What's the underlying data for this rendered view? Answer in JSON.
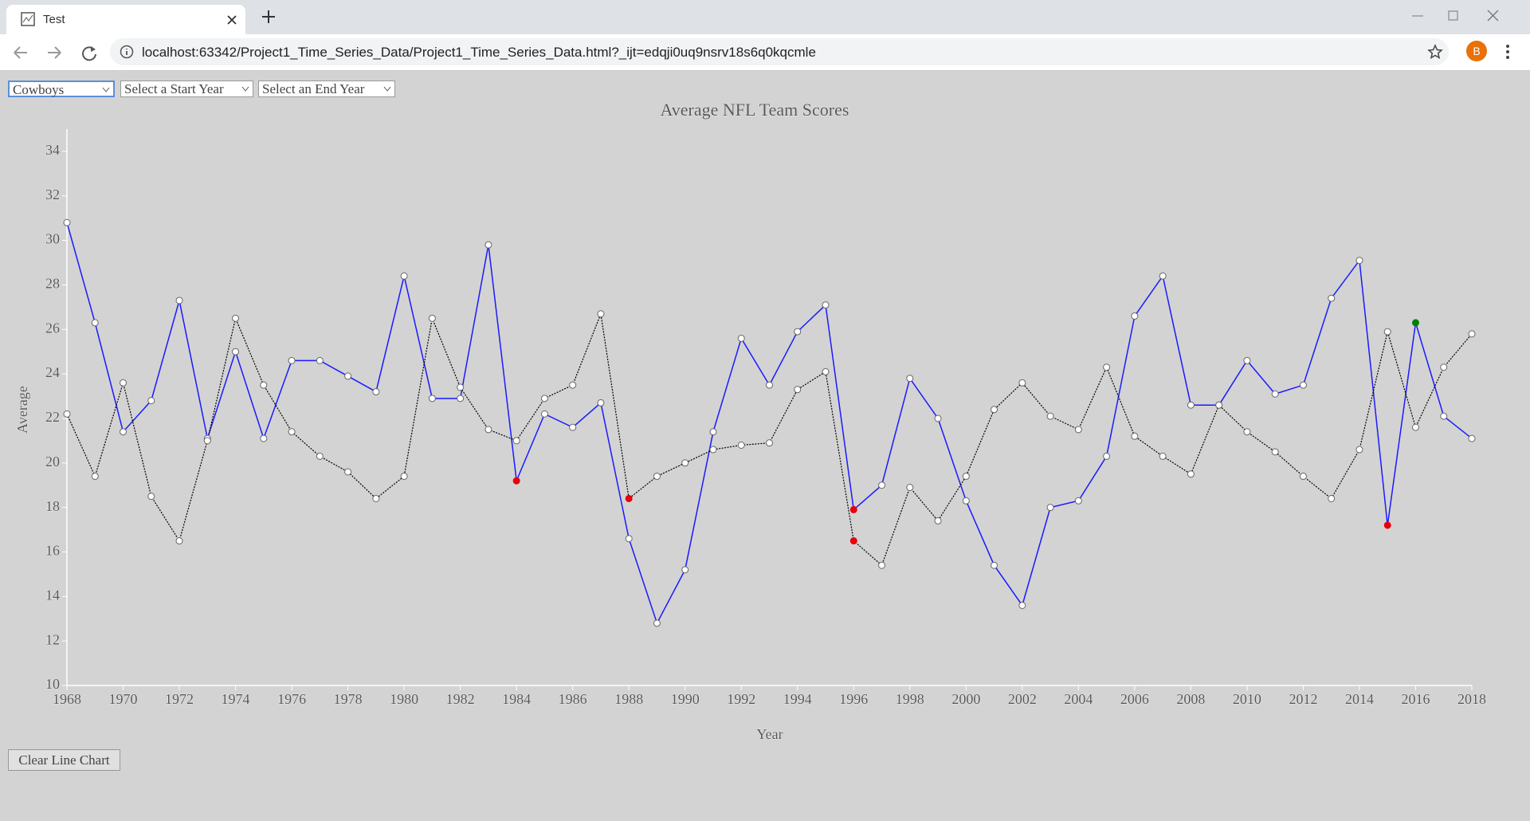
{
  "browser": {
    "tab_title": "Test",
    "url": "localhost:63342/Project1_Time_Series_Data/Project1_Time_Series_Data.html?_ijt=edqji0uq9nsrv18s6q0kqcmle",
    "profile_initial": "B"
  },
  "controls": {
    "team": "Cowboys",
    "start_year": "Select a Start Year",
    "end_year": "Select an End Year",
    "clear_button": "Clear Line Chart"
  },
  "chart_data": {
    "type": "line",
    "title": "Average NFL Team Scores",
    "x_label": "Year",
    "y_label": "Average",
    "x": [
      1968,
      1969,
      1970,
      1971,
      1972,
      1973,
      1974,
      1975,
      1976,
      1977,
      1978,
      1979,
      1980,
      1981,
      1982,
      1983,
      1984,
      1985,
      1986,
      1987,
      1988,
      1989,
      1990,
      1991,
      1992,
      1993,
      1994,
      1995,
      1996,
      1997,
      1998,
      1999,
      2000,
      2001,
      2002,
      2003,
      2004,
      2005,
      2006,
      2007,
      2008,
      2009,
      2010,
      2011,
      2012,
      2013,
      2014,
      2015,
      2016,
      2017,
      2018
    ],
    "xlim": [
      1968,
      2018
    ],
    "xticks": [
      1968,
      1970,
      1972,
      1974,
      1976,
      1978,
      1980,
      1982,
      1984,
      1986,
      1988,
      1990,
      1992,
      1994,
      1996,
      1998,
      2000,
      2002,
      2004,
      2006,
      2008,
      2010,
      2012,
      2014,
      2016,
      2018
    ],
    "ylim": [
      10,
      35
    ],
    "yticks": [
      10,
      12,
      14,
      16,
      18,
      20,
      22,
      24,
      26,
      28,
      30,
      32,
      34
    ],
    "series": [
      {
        "color": "#1a1aff",
        "line_style": "solid",
        "values": [
          30.8,
          26.3,
          21.4,
          22.8,
          27.3,
          21.1,
          25.0,
          21.1,
          24.6,
          24.6,
          23.9,
          23.2,
          28.4,
          22.9,
          22.9,
          29.8,
          19.2,
          22.2,
          21.6,
          22.7,
          16.6,
          12.8,
          15.2,
          21.4,
          25.6,
          23.5,
          25.9,
          27.1,
          17.9,
          19.0,
          23.8,
          22.0,
          18.3,
          15.4,
          13.6,
          18.0,
          18.3,
          20.3,
          26.6,
          28.4,
          22.6,
          22.6,
          24.6,
          23.1,
          23.5,
          27.4,
          29.1,
          17.2,
          26.3,
          22.1,
          21.1
        ],
        "marker_colors": [
          "#ffffff",
          "#ffffff",
          "#ffffff",
          "#ffffff",
          "#ffffff",
          "#ffffff",
          "#ffffff",
          "#ffffff",
          "#ffffff",
          "#ffffff",
          "#ffffff",
          "#ffffff",
          "#ffffff",
          "#ffffff",
          "#ffffff",
          "#ffffff",
          "#e8000b",
          "#ffffff",
          "#ffffff",
          "#ffffff",
          "#ffffff",
          "#ffffff",
          "#ffffff",
          "#ffffff",
          "#ffffff",
          "#ffffff",
          "#ffffff",
          "#ffffff",
          "#e8000b",
          "#ffffff",
          "#ffffff",
          "#ffffff",
          "#ffffff",
          "#ffffff",
          "#ffffff",
          "#ffffff",
          "#ffffff",
          "#ffffff",
          "#ffffff",
          "#ffffff",
          "#ffffff",
          "#ffffff",
          "#ffffff",
          "#ffffff",
          "#ffffff",
          "#ffffff",
          "#ffffff",
          "#e8000b",
          "#008000",
          "#ffffff",
          "#ffffff"
        ]
      },
      {
        "color": "#000000",
        "line_style": "dotted",
        "values": [
          22.2,
          19.4,
          23.6,
          18.5,
          16.5,
          21.0,
          26.5,
          23.5,
          21.4,
          20.3,
          19.6,
          18.4,
          19.4,
          26.5,
          23.4,
          21.5,
          21.0,
          22.9,
          23.5,
          26.7,
          18.4,
          19.4,
          20.0,
          20.6,
          20.8,
          20.9,
          23.3,
          24.1,
          16.5,
          15.4,
          18.9,
          17.4,
          19.4,
          22.4,
          23.6,
          22.1,
          21.5,
          24.3,
          21.2,
          20.3,
          19.5,
          22.6,
          21.4,
          20.5,
          19.4,
          18.4,
          20.6,
          25.9,
          21.6,
          24.3,
          25.8
        ],
        "marker_colors": [
          "#ffffff",
          "#ffffff",
          "#ffffff",
          "#ffffff",
          "#ffffff",
          "#ffffff",
          "#ffffff",
          "#ffffff",
          "#ffffff",
          "#ffffff",
          "#ffffff",
          "#ffffff",
          "#ffffff",
          "#ffffff",
          "#ffffff",
          "#ffffff",
          "#ffffff",
          "#ffffff",
          "#ffffff",
          "#ffffff",
          "#e8000b",
          "#ffffff",
          "#ffffff",
          "#ffffff",
          "#ffffff",
          "#ffffff",
          "#ffffff",
          "#ffffff",
          "#e8000b",
          "#ffffff",
          "#ffffff",
          "#ffffff",
          "#ffffff",
          "#ffffff",
          "#ffffff",
          "#ffffff",
          "#ffffff",
          "#ffffff",
          "#ffffff",
          "#ffffff",
          "#ffffff",
          "#ffffff",
          "#ffffff",
          "#ffffff",
          "#ffffff",
          "#ffffff",
          "#ffffff",
          "#ffffff",
          "#ffffff",
          "#ffffff",
          "#ffffff"
        ]
      }
    ]
  }
}
